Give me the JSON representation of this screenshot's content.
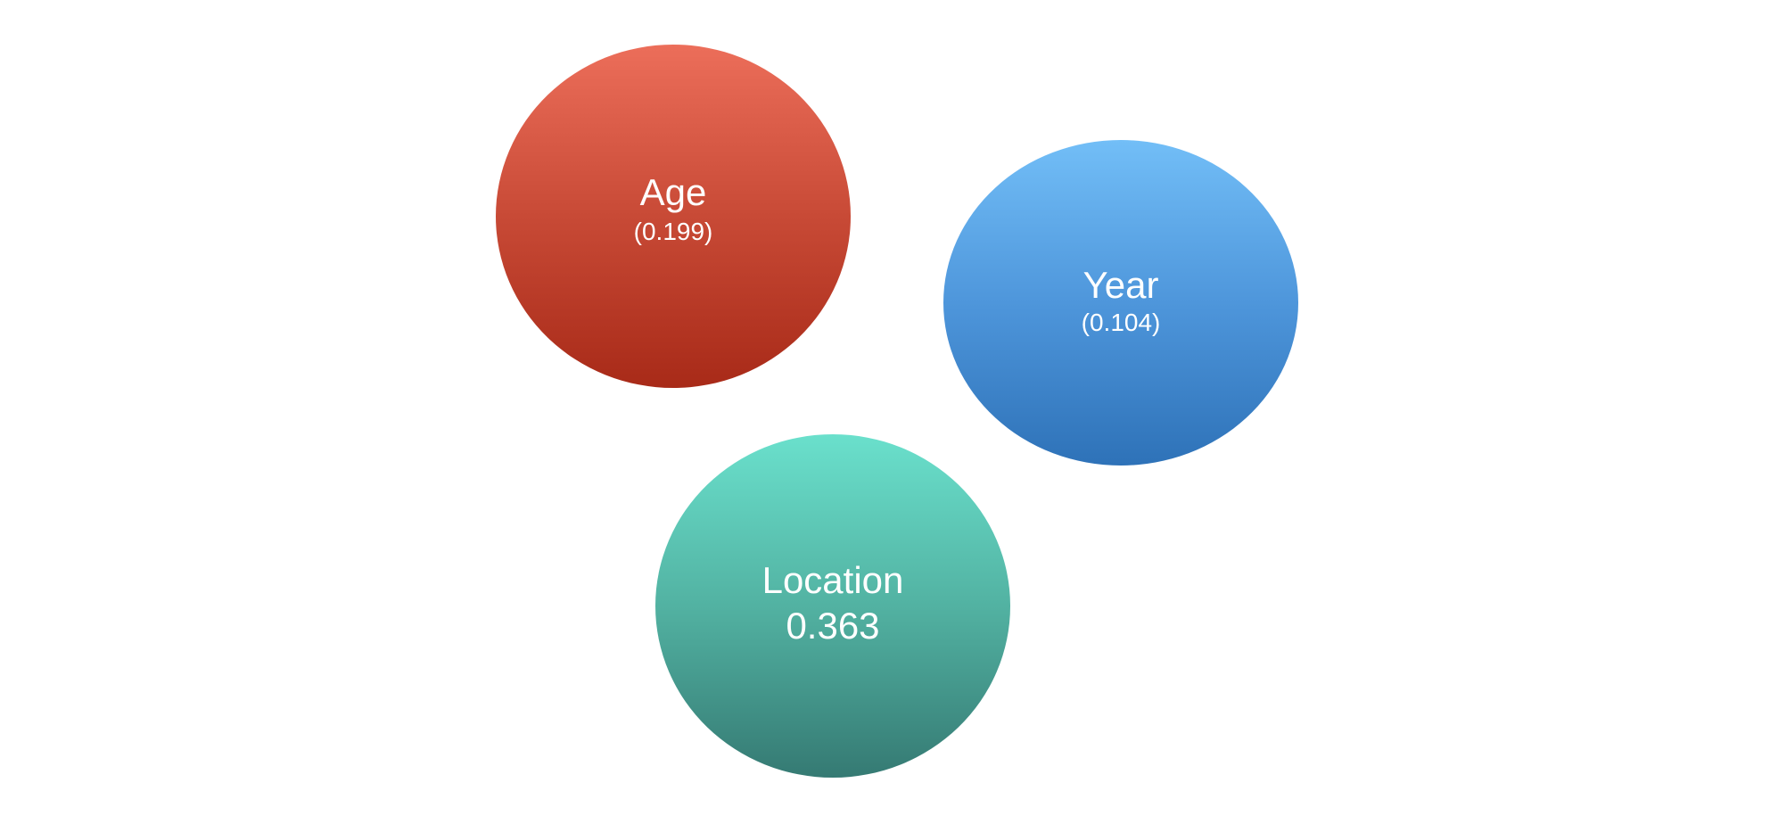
{
  "bubbles": {
    "age": {
      "label": "Age",
      "value_text": "(0.199)",
      "value": 0.199,
      "color_top": "#ec6e5a",
      "color_bottom": "#a82a18"
    },
    "year": {
      "label": "Year",
      "value_text": "(0.104)",
      "value": 0.104,
      "color_top": "#72bef7",
      "color_bottom": "#2e72b8"
    },
    "location": {
      "label": "Location",
      "value_text": "0.363",
      "value": 0.363,
      "color_top": "#6ae0cc",
      "color_bottom": "#357a73"
    }
  }
}
